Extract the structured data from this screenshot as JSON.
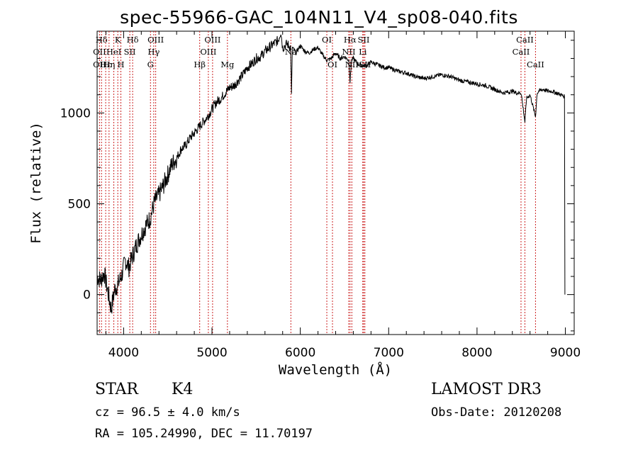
{
  "header": {
    "title": "spec-55966-GAC_104N11_V4_sp08-040.fits"
  },
  "footer": {
    "object_type": "STAR",
    "subclass": "K4",
    "survey": "LAMOST DR3",
    "redshift_text": "cz = 96.5 ± 4.0 km/s",
    "obs_date_text": "Obs-Date: 20120208",
    "coords_text": "RA = 105.24990, DEC =  11.70197"
  },
  "colors": {
    "spectrum": "#000000",
    "line_marker": "#cc2222",
    "axes": "#000000"
  },
  "chart_data": {
    "type": "line",
    "title": "spec-55966-GAC_104N11_V4_sp08-040.fits",
    "xlabel": "Wavelength (Å)",
    "ylabel": "Flux (relative)",
    "xlim": [
      3700,
      9100
    ],
    "ylim": [
      -220,
      1450
    ],
    "x_ticks": [
      4000,
      5000,
      6000,
      7000,
      8000,
      9000
    ],
    "x_tick_labels": [
      "4000",
      "5000",
      "6000",
      "7000",
      "8000",
      "9000"
    ],
    "y_ticks": [
      0,
      500,
      1000
    ],
    "y_tick_labels": [
      "0",
      "500",
      "1000"
    ],
    "grid": false,
    "series": [
      {
        "name": "flux",
        "x": [
          3700,
          3740,
          3780,
          3820,
          3860,
          3900,
          3940,
          3980,
          4020,
          4060,
          4100,
          4150,
          4200,
          4250,
          4300,
          4350,
          4400,
          4450,
          4500,
          4550,
          4600,
          4650,
          4700,
          4750,
          4800,
          4850,
          4900,
          4950,
          5000,
          5050,
          5100,
          5150,
          5200,
          5250,
          5300,
          5350,
          5400,
          5450,
          5500,
          5550,
          5600,
          5650,
          5700,
          5750,
          5780,
          5800,
          5850,
          5890,
          5900,
          5910,
          5950,
          6000,
          6050,
          6100,
          6150,
          6200,
          6250,
          6300,
          6350,
          6400,
          6450,
          6500,
          6550,
          6563,
          6580,
          6600,
          6650,
          6700,
          6750,
          6800,
          6850,
          6900,
          6950,
          7000,
          7050,
          7100,
          7200,
          7300,
          7400,
          7500,
          7600,
          7700,
          7800,
          7900,
          8000,
          8100,
          8200,
          8300,
          8400,
          8450,
          8500,
          8542,
          8560,
          8600,
          8662,
          8680,
          8700,
          8750,
          8800,
          8850,
          8900,
          8950,
          8990,
          8995
        ],
        "values": [
          100,
          80,
          120,
          20,
          -80,
          30,
          60,
          110,
          190,
          150,
          210,
          280,
          330,
          380,
          420,
          510,
          550,
          600,
          660,
          720,
          750,
          800,
          820,
          860,
          890,
          920,
          950,
          980,
          1020,
          1060,
          1080,
          1110,
          1140,
          1150,
          1180,
          1210,
          1250,
          1270,
          1300,
          1310,
          1340,
          1360,
          1380,
          1400,
          1450,
          1360,
          1380,
          1360,
          1100,
          1360,
          1330,
          1370,
          1340,
          1330,
          1350,
          1360,
          1320,
          1290,
          1300,
          1330,
          1300,
          1310,
          1290,
          1170,
          1290,
          1300,
          1270,
          1260,
          1260,
          1280,
          1270,
          1260,
          1250,
          1250,
          1240,
          1230,
          1220,
          1200,
          1190,
          1200,
          1210,
          1200,
          1180,
          1170,
          1160,
          1150,
          1130,
          1110,
          1120,
          1110,
          1110,
          950,
          1080,
          1100,
          980,
          1110,
          1120,
          1130,
          1120,
          1120,
          1110,
          1100,
          1090,
          0
        ]
      }
    ],
    "line_markers": [
      {
        "label": "Hδ",
        "wavelength": 3750,
        "row": 1
      },
      {
        "label": "OII",
        "wavelength": 3727,
        "row": 2
      },
      {
        "label": "OII",
        "wavelength": 3727,
        "row": 3
      },
      {
        "label": "Hε",
        "wavelength": 3797,
        "row": 3
      },
      {
        "label": "Hη",
        "wavelength": 3835,
        "row": 3
      },
      {
        "label": "HeI",
        "wavelength": 3889,
        "row": 2
      },
      {
        "label": "K",
        "wavelength": 3934,
        "row": 1
      },
      {
        "label": "H",
        "wavelength": 3969,
        "row": 3
      },
      {
        "label": "SII",
        "wavelength": 4070,
        "row": 2
      },
      {
        "label": "Hδ",
        "wavelength": 4102,
        "row": 1
      },
      {
        "label": "OIII",
        "wavelength": 4363,
        "row": 1
      },
      {
        "label": "Hγ",
        "wavelength": 4341,
        "row": 2
      },
      {
        "label": "G",
        "wavelength": 4304,
        "row": 3
      },
      {
        "label": "Hβ",
        "wavelength": 4861,
        "row": 3
      },
      {
        "label": "OIII",
        "wavelength": 5007,
        "row": 1
      },
      {
        "label": "OIII",
        "wavelength": 4959,
        "row": 2
      },
      {
        "label": "Mg",
        "wavelength": 5175,
        "row": 3
      },
      {
        "label": "Na",
        "wavelength": 5893,
        "row": 2
      },
      {
        "label": "OI",
        "wavelength": 6300,
        "row": 1
      },
      {
        "label": "OI",
        "wavelength": 6364,
        "row": 3
      },
      {
        "label": "Hα",
        "wavelength": 6563,
        "row": 1
      },
      {
        "label": "NII",
        "wavelength": 6548,
        "row": 2
      },
      {
        "label": "NII",
        "wavelength": 6583,
        "row": 3
      },
      {
        "label": "SII",
        "wavelength": 6717,
        "row": 1
      },
      {
        "label": "Li",
        "wavelength": 6707,
        "row": 2
      },
      {
        "label": "SII",
        "wavelength": 6731,
        "row": 3
      },
      {
        "label": "CaII",
        "wavelength": 8542,
        "row": 1
      },
      {
        "label": "CaII",
        "wavelength": 8498,
        "row": 2
      },
      {
        "label": "CaII",
        "wavelength": 8662,
        "row": 3
      }
    ]
  }
}
